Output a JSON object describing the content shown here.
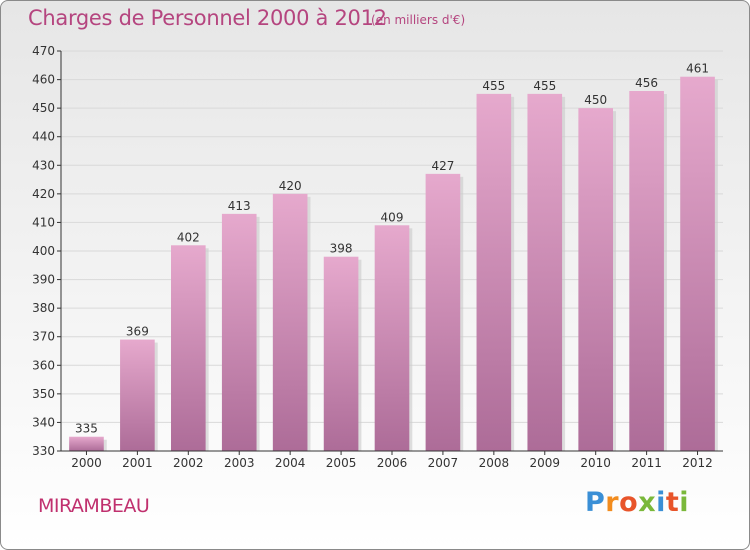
{
  "title": "Charges de Personnel 2000 à 2012",
  "subtitle": "(en milliers d'€)",
  "commune": "MIRAMBEAU",
  "brand": {
    "text": "Proxiti",
    "letter_colors": [
      "#3a8fd6",
      "#f28c1e",
      "#e8542a",
      "#7ab83a",
      "#3a8fd6",
      "#e8542a",
      "#7ab83a"
    ]
  },
  "colors": {
    "bar_top": "#e6a9cd",
    "bar_bottom": "#ad6c98",
    "grid": "#d9d9d9",
    "axis": "#333333",
    "text": "#333333"
  },
  "chart_data": {
    "type": "bar",
    "categories": [
      "2000",
      "2001",
      "2002",
      "2003",
      "2004",
      "2005",
      "2006",
      "2007",
      "2008",
      "2009",
      "2010",
      "2011",
      "2012"
    ],
    "values": [
      335,
      369,
      402,
      413,
      420,
      398,
      409,
      427,
      455,
      455,
      450,
      456,
      461
    ],
    "yticks": [
      330,
      340,
      350,
      360,
      370,
      380,
      390,
      400,
      410,
      420,
      430,
      440,
      450,
      460,
      470
    ],
    "ylim": [
      330,
      470
    ],
    "grid": true,
    "xlabel": "",
    "ylabel": ""
  }
}
